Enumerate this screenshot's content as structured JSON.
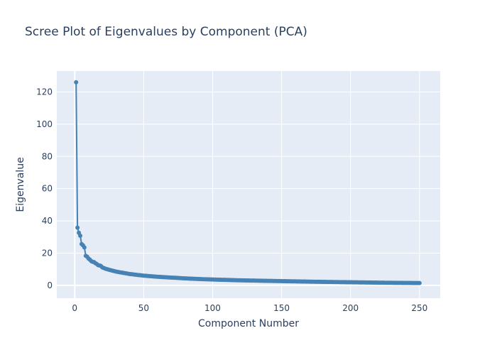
{
  "chart_data": {
    "type": "line",
    "title": "Scree Plot of Eigenvalues by Component (PCA)",
    "xlabel": "Component Number",
    "ylabel": "Eigenvalue",
    "xlim": [
      -13,
      265
    ],
    "ylim": [
      -8,
      133
    ],
    "xticks": [
      0,
      50,
      100,
      150,
      200,
      250
    ],
    "yticks": [
      0,
      20,
      40,
      60,
      80,
      100,
      120
    ],
    "grid": true,
    "colors": {
      "line": "#4682b4",
      "plot_bg": "#e5ecf6",
      "grid": "#ffffff",
      "text": "#2a3f5f"
    },
    "series": [
      {
        "values_first": [
          126.0,
          35.8,
          32.6,
          30.8,
          25.6,
          24.8,
          23.5,
          18.3,
          17.8,
          16.6,
          15.9,
          15.0,
          14.6,
          14.4,
          13.7,
          13.2,
          12.5,
          12.3,
          12.0,
          11.1,
          10.8,
          10.4,
          10.1,
          9.9,
          9.6
        ],
        "x_first_start": 1,
        "tail_points": [
          [
            25,
            9.6
          ],
          [
            30,
            8.5
          ],
          [
            40,
            7.0
          ],
          [
            50,
            6.0
          ],
          [
            60,
            5.3
          ],
          [
            70,
            4.8
          ],
          [
            80,
            4.3
          ],
          [
            90,
            3.9
          ],
          [
            100,
            3.6
          ],
          [
            120,
            3.1
          ],
          [
            150,
            2.6
          ],
          [
            175,
            2.2
          ],
          [
            200,
            1.9
          ],
          [
            225,
            1.6
          ],
          [
            250,
            1.4
          ]
        ]
      }
    ]
  }
}
